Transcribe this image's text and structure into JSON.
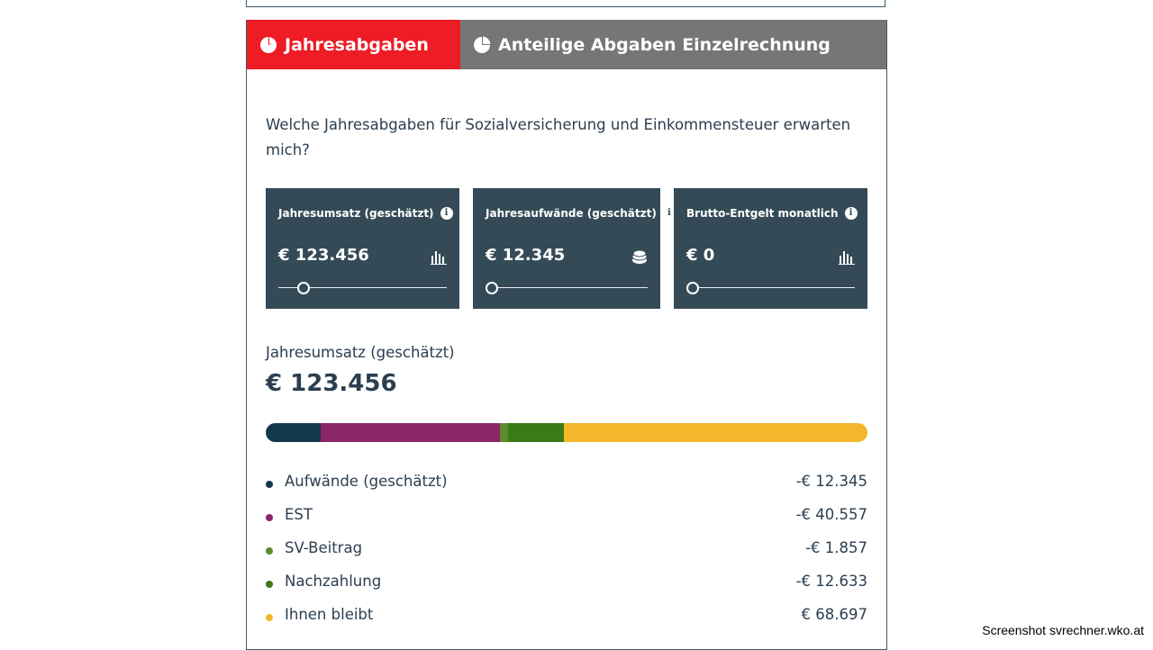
{
  "tabs": [
    {
      "label": "Jahresabgaben",
      "active": true
    },
    {
      "label": "Anteilige Abgaben Einzelrechnung",
      "active": false
    }
  ],
  "question": "Welche Jahresabgaben für Sozialversicherung und Einkommensteuer erwarten mich?",
  "cards": [
    {
      "label": "Jahresumsatz (geschätzt)",
      "value": "€ 123.456",
      "icon": "bar-chart-icon",
      "slider_fraction": 0.11
    },
    {
      "label": "Jahresaufwände (geschätzt)",
      "value": "€ 12.345",
      "icon": "coins-icon",
      "slider_fraction": 0.0
    },
    {
      "label": "Brutto-Entgelt monatlich",
      "value": "€ 0",
      "icon": "bar-chart-icon",
      "slider_fraction": 0.0
    }
  ],
  "result": {
    "label": "Jahresumsatz (geschätzt)",
    "value": "€ 123.456"
  },
  "breakdown": [
    {
      "name": "Aufwände (geschätzt)",
      "amount": "-€ 12.345",
      "value": 12345,
      "color": "#133a4a"
    },
    {
      "name": "EST",
      "amount": "-€ 40.557",
      "value": 40557,
      "color": "#8b2667"
    },
    {
      "name": "SV-Beitrag",
      "amount": "-€ 1.857",
      "value": 1857,
      "color": "#5a8c2e"
    },
    {
      "name": "Nachzahlung",
      "amount": "-€ 12.633",
      "value": 12633,
      "color": "#3a7a17"
    },
    {
      "name": "Ihnen bleibt",
      "amount": "€ 68.697",
      "value": 68697,
      "color": "#f2b72b"
    }
  ],
  "credit": "Screenshot svrechner.wko.at"
}
